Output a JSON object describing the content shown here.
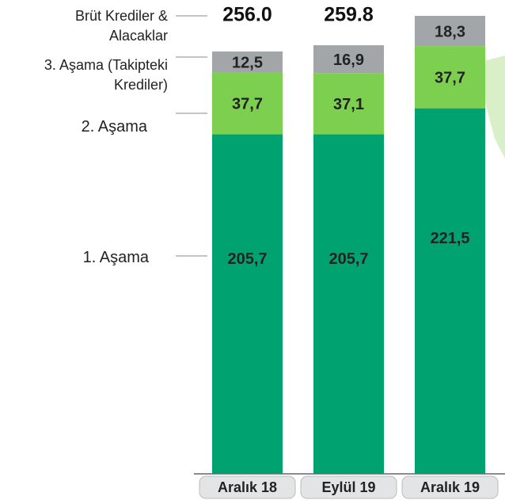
{
  "chart_data": {
    "type": "stacked_bar",
    "categories": [
      "Aralık 18",
      "Eylül 19",
      "Aralık 19"
    ],
    "series": [
      {
        "name": "1. Aşama",
        "color": "#00a36f",
        "values": [
          205.7,
          205.7,
          221.5
        ],
        "value_labels": [
          "205,7",
          "205,7",
          "221,5"
        ]
      },
      {
        "name": "2. Aşama",
        "color": "#7dcf50",
        "values": [
          37.7,
          37.1,
          37.7
        ],
        "value_labels": [
          "37,7",
          "37,1",
          "37,7"
        ]
      },
      {
        "name": "3. Aşama (Takipteki Krediler)",
        "color": "#a3a6a9",
        "values": [
          12.5,
          16.9,
          18.3
        ],
        "value_labels": [
          "12,5",
          "16,9",
          "18,3"
        ]
      }
    ],
    "totals_label": "Brüt Krediler & Alacaklar",
    "totals": [
      256.0,
      259.8,
      null
    ],
    "totals_labels": [
      "256.0",
      "259.8",
      null
    ]
  }
}
